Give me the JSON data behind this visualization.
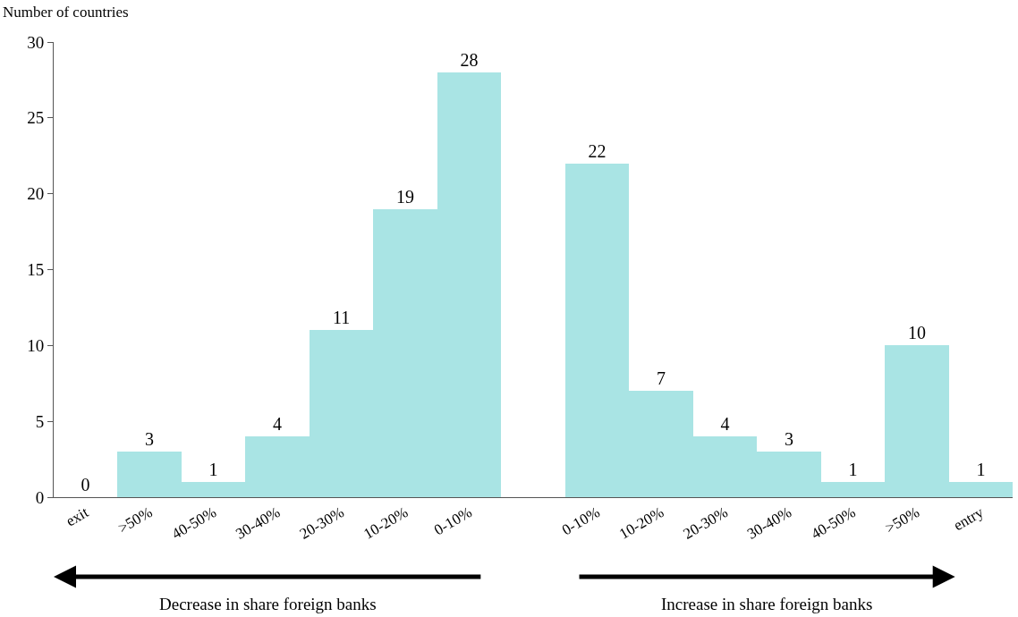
{
  "chart_data": {
    "type": "bar",
    "ylabel": "Number of countries",
    "categories": [
      "exit",
      ">50%",
      "40-50%",
      "30-40%",
      "20-30%",
      "10-20%",
      "0-10%",
      null,
      "0-10%",
      "10-20%",
      "20-30%",
      "30-40%",
      "40-50%",
      ">50%",
      "entry"
    ],
    "values": [
      0,
      3,
      1,
      4,
      11,
      19,
      28,
      null,
      22,
      7,
      4,
      3,
      1,
      10,
      1
    ],
    "color": "#a9e4e4",
    "ylim": [
      0,
      30
    ],
    "yticks": [
      0,
      5,
      10,
      15,
      20,
      25,
      30
    ],
    "data_labels": true,
    "annotations": [
      "Decrease in share foreign banks",
      "Increase in share foreign banks"
    ]
  }
}
